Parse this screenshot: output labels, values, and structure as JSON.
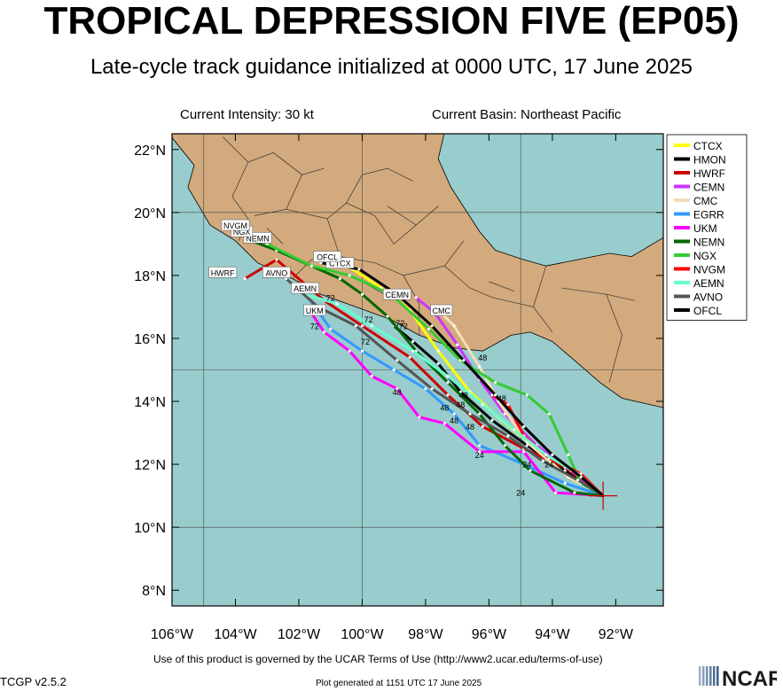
{
  "title": "TROPICAL DEPRESSION FIVE (EP05)",
  "subtitle": "Late-cycle track guidance initialized at 0000 UTC, 17 June 2025",
  "current_intensity": "Current Intensity: 30 kt",
  "current_basin": "Current Basin: Northeast Pacific",
  "footer_terms": "Use of this product is governed by the UCAR Terms of Use (http://www2.ucar.edu/terms-of-use)",
  "footer_version": "TCGP v2.5.2",
  "footer_generated": "Plot generated at 1151 UTC   17 June 2025",
  "logo_text": "NCAR",
  "colors": {
    "ocean": "#99cccc",
    "land": "#d2aa7d",
    "border": "#333333"
  },
  "chart_data": {
    "type": "map",
    "xlim": [
      -106,
      -90.5
    ],
    "ylim": [
      7.5,
      22.5
    ],
    "x_ticks": [
      -106,
      -104,
      -102,
      -100,
      -98,
      -96,
      -94,
      -92
    ],
    "x_tick_labels": [
      "106°W",
      "104°W",
      "102°W",
      "100°W",
      "98°W",
      "96°W",
      "94°W",
      "92°W"
    ],
    "y_ticks": [
      8,
      10,
      12,
      14,
      16,
      18,
      20,
      22
    ],
    "y_tick_labels": [
      "8°N",
      "10°N",
      "12°N",
      "14°N",
      "16°N",
      "18°N",
      "20°N",
      "22°N"
    ],
    "gridlines": {
      "lon": [
        -105,
        -100,
        -95
      ],
      "lat": [
        10,
        15,
        20
      ]
    },
    "current_position": {
      "lon": -92.4,
      "lat": 11.0
    },
    "legend_position": "right",
    "hour_markers": [
      {
        "text": "24",
        "lon": -94.1,
        "lat": 11.9
      },
      {
        "text": "24",
        "lon": -94.8,
        "lat": 11.9
      },
      {
        "text": "24",
        "lon": -95.0,
        "lat": 11.0
      },
      {
        "text": "24",
        "lon": -96.3,
        "lat": 12.2
      },
      {
        "text": "48",
        "lon": -96.2,
        "lat": 15.3
      },
      {
        "text": "48",
        "lon": -96.8,
        "lat": 14.1
      },
      {
        "text": "48",
        "lon": -95.6,
        "lat": 14.0
      },
      {
        "text": "48",
        "lon": -96.9,
        "lat": 13.8
      },
      {
        "text": "48",
        "lon": -97.4,
        "lat": 13.7
      },
      {
        "text": "48",
        "lon": -97.1,
        "lat": 13.3
      },
      {
        "text": "48",
        "lon": -96.6,
        "lat": 13.1
      },
      {
        "text": "48",
        "lon": -98.9,
        "lat": 14.2
      },
      {
        "text": "72",
        "lon": -101.0,
        "lat": 17.2
      },
      {
        "text": "72",
        "lon": -99.8,
        "lat": 16.5
      },
      {
        "text": "72",
        "lon": -98.8,
        "lat": 16.4
      },
      {
        "text": "72",
        "lon": -98.7,
        "lat": 16.3
      },
      {
        "text": "72",
        "lon": -99.9,
        "lat": 15.8
      },
      {
        "text": "72",
        "lon": -101.5,
        "lat": 16.3
      }
    ],
    "tracks": [
      {
        "name": "CTCX",
        "color": "#ffff00",
        "points": [
          [
            -92.4,
            11.0
          ],
          [
            -93.5,
            11.8
          ],
          [
            -94.6,
            12.6
          ],
          [
            -95.6,
            13.4
          ],
          [
            -96.6,
            14.3
          ],
          [
            -97.6,
            15.6
          ],
          [
            -98.5,
            16.9
          ],
          [
            -99.4,
            17.6
          ],
          [
            -100.3,
            18.2
          ],
          [
            -101.3,
            18.5
          ]
        ],
        "label": "CTCX",
        "label_at": [
          -100.7,
          18.4
        ]
      },
      {
        "name": "HMON",
        "color": "#000000",
        "points": [
          [
            -92.4,
            11.0
          ],
          [
            -93.6,
            11.8
          ],
          [
            -94.8,
            12.6
          ],
          [
            -95.9,
            13.4
          ],
          [
            -96.9,
            14.3
          ],
          [
            -97.6,
            15.2
          ],
          [
            -98.4,
            15.9
          ],
          [
            -99.0,
            16.4
          ]
        ],
        "label": null
      },
      {
        "name": "HWRF",
        "color": "#cc0000",
        "points": [
          [
            -92.4,
            11.0
          ],
          [
            -93.6,
            11.9
          ],
          [
            -94.9,
            12.5
          ],
          [
            -96.2,
            13.2
          ],
          [
            -97.3,
            14.2
          ],
          [
            -98.5,
            15.4
          ],
          [
            -100.0,
            16.4
          ],
          [
            -101.2,
            17.2
          ],
          [
            -102.7,
            18.5
          ],
          [
            -103.7,
            17.9
          ]
        ],
        "label": "HWRF",
        "label_at": [
          -104.4,
          18.1
        ]
      },
      {
        "name": "CEMN",
        "color": "#cc33ff",
        "points": [
          [
            -92.4,
            11.0
          ],
          [
            -93.4,
            11.8
          ],
          [
            -94.5,
            12.6
          ],
          [
            -95.5,
            13.6
          ],
          [
            -96.3,
            14.7
          ],
          [
            -97.0,
            15.8
          ],
          [
            -97.7,
            16.8
          ],
          [
            -98.3,
            17.3
          ]
        ],
        "label": "CEMN",
        "label_at": [
          -98.9,
          17.4
        ]
      },
      {
        "name": "CMC",
        "color": "#f5deb3",
        "points": [
          [
            -92.4,
            11.0
          ],
          [
            -93.5,
            11.6
          ],
          [
            -94.8,
            12.7
          ],
          [
            -95.7,
            14.0
          ],
          [
            -96.3,
            15.1
          ],
          [
            -97.1,
            16.4
          ],
          [
            -97.6,
            16.9
          ]
        ],
        "label": "CMC",
        "label_at": [
          -97.5,
          16.9
        ]
      },
      {
        "name": "EGRR",
        "color": "#3399ff",
        "points": [
          [
            -92.4,
            11.0
          ],
          [
            -93.6,
            11.4
          ],
          [
            -94.9,
            12.0
          ],
          [
            -96.3,
            12.6
          ],
          [
            -97.1,
            13.6
          ],
          [
            -98.0,
            14.4
          ],
          [
            -99.0,
            15.0
          ],
          [
            -100.0,
            15.6
          ],
          [
            -101.0,
            16.3
          ],
          [
            -101.7,
            17.3
          ]
        ],
        "label": null
      },
      {
        "name": "UKM",
        "color": "#ff00ff",
        "points": [
          [
            -92.4,
            11.0
          ],
          [
            -93.9,
            11.1
          ],
          [
            -94.9,
            12.4
          ],
          [
            -96.3,
            12.4
          ],
          [
            -97.4,
            13.3
          ],
          [
            -98.2,
            13.5
          ],
          [
            -98.9,
            14.4
          ],
          [
            -99.7,
            14.8
          ],
          [
            -100.4,
            15.6
          ],
          [
            -101.2,
            16.2
          ],
          [
            -101.6,
            16.8
          ]
        ],
        "label": "UKM",
        "label_at": [
          -101.5,
          16.9
        ]
      },
      {
        "name": "NEMN",
        "color": "#006600",
        "points": [
          [
            -92.4,
            11.0
          ],
          [
            -93.3,
            11.1
          ],
          [
            -94.7,
            11.8
          ],
          [
            -95.5,
            12.6
          ],
          [
            -96.3,
            13.6
          ],
          [
            -97.3,
            14.6
          ],
          [
            -98.3,
            15.6
          ],
          [
            -99.2,
            16.7
          ],
          [
            -100.0,
            17.4
          ],
          [
            -100.7,
            17.9
          ],
          [
            -101.6,
            18.3
          ],
          [
            -102.7,
            18.8
          ],
          [
            -103.5,
            19.1
          ]
        ],
        "label": "NEMN",
        "label_at": [
          -103.3,
          19.2
        ]
      },
      {
        "name": "NGX",
        "color": "#33cc33",
        "points": [
          [
            -92.4,
            11.0
          ],
          [
            -93.1,
            11.4
          ],
          [
            -93.5,
            12.3
          ],
          [
            -94.1,
            13.6
          ],
          [
            -94.8,
            14.2
          ],
          [
            -95.8,
            14.6
          ],
          [
            -96.9,
            15.3
          ],
          [
            -97.9,
            16.3
          ],
          [
            -99.1,
            17.4
          ],
          [
            -100.4,
            18.0
          ],
          [
            -101.6,
            18.3
          ],
          [
            -103.0,
            19.0
          ],
          [
            -103.6,
            19.4
          ]
        ],
        "label": "NGX",
        "label_at": [
          -103.8,
          19.4
        ]
      },
      {
        "name": "NVGM",
        "color": "#ff0000",
        "points": [
          [
            -92.4,
            11.0
          ],
          [
            -93.1,
            11.7
          ],
          [
            -94.1,
            12.2
          ],
          [
            -94.9,
            12.9
          ],
          [
            -95.4,
            13.9
          ],
          [
            -95.9,
            14.2
          ]
        ],
        "label": "NVGM",
        "label_at": [
          -104.0,
          19.6
        ]
      },
      {
        "name": "AEMN",
        "color": "#66ffcc",
        "points": [
          [
            -92.4,
            11.0
          ],
          [
            -93.2,
            11.7
          ],
          [
            -94.2,
            12.3
          ],
          [
            -95.2,
            13.1
          ],
          [
            -96.2,
            13.9
          ],
          [
            -97.3,
            14.8
          ],
          [
            -98.4,
            15.6
          ],
          [
            -99.7,
            16.4
          ],
          [
            -100.8,
            17.1
          ],
          [
            -101.8,
            17.4
          ]
        ],
        "label": "AEMN",
        "label_at": [
          -101.8,
          17.6
        ]
      },
      {
        "name": "AVNO",
        "color": "#555555",
        "points": [
          [
            -92.4,
            11.0
          ],
          [
            -93.2,
            11.5
          ],
          [
            -94.3,
            12.1
          ],
          [
            -95.4,
            12.9
          ],
          [
            -96.6,
            13.6
          ],
          [
            -97.8,
            14.4
          ],
          [
            -98.9,
            15.3
          ],
          [
            -100.2,
            16.4
          ],
          [
            -101.4,
            17.0
          ],
          [
            -102.4,
            17.9
          ]
        ],
        "label": "AVNO",
        "label_at": [
          -102.7,
          18.1
        ]
      },
      {
        "name": "OFCL",
        "color": "#000000",
        "points": [
          [
            -92.4,
            11.0
          ],
          [
            -93.1,
            11.6
          ],
          [
            -94.0,
            12.3
          ],
          [
            -94.9,
            13.2
          ],
          [
            -95.8,
            14.2
          ],
          [
            -96.8,
            15.3
          ],
          [
            -97.8,
            16.4
          ],
          [
            -98.9,
            17.4
          ],
          [
            -100.1,
            18.2
          ],
          [
            -101.3,
            18.4
          ]
        ],
        "label": "OFCL",
        "label_at": [
          -101.1,
          18.6
        ]
      }
    ]
  }
}
